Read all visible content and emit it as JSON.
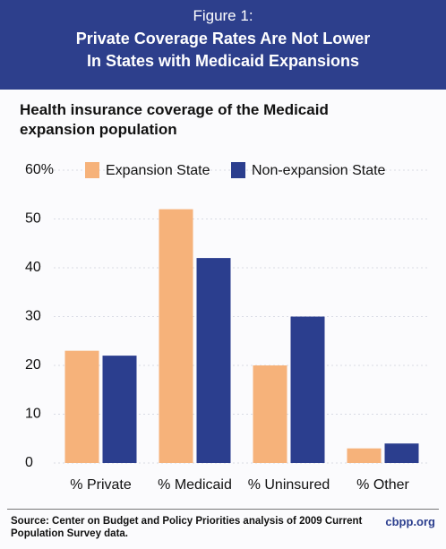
{
  "chart_data": {
    "type": "bar",
    "figure_label": "Figure 1:",
    "title": "Private Coverage Rates Are Not Lower In States with Medicaid Expansions",
    "subtitle": "Health insurance coverage of the Medicaid expansion population",
    "categories": [
      "% Private",
      "% Medicaid",
      "% Uninsured",
      "% Other"
    ],
    "series": [
      {
        "name": "Expansion State",
        "color": "#f6b27a",
        "values": [
          23,
          52,
          20,
          3
        ]
      },
      {
        "name": "Non-expansion State",
        "color": "#2b3e8e",
        "values": [
          22,
          42,
          30,
          4
        ]
      }
    ],
    "ylim": [
      0,
      60
    ],
    "yticks": [
      0,
      10,
      20,
      30,
      40,
      50,
      {
        "value": 60,
        "label": "60%"
      }
    ],
    "grid": true,
    "legend": "top",
    "source": "Source: Center on Budget and Policy Priorities analysis of 2009 Current Population Survey data.",
    "site": "cbpp.org"
  }
}
